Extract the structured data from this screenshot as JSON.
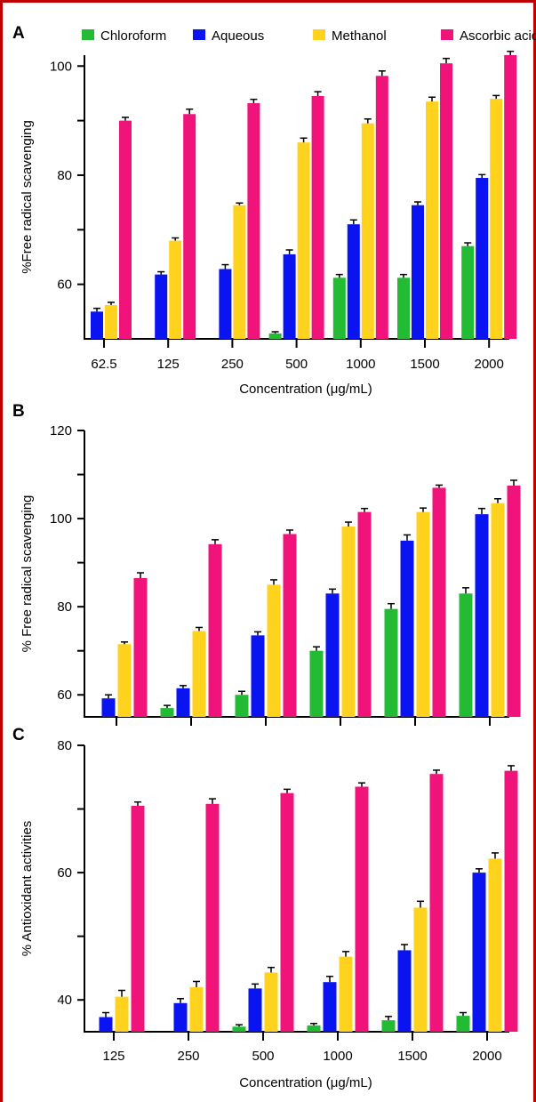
{
  "colors": {
    "chloroform": "#22bb33",
    "aqueous": "#0a14f0",
    "methanol": "#ffd21e",
    "ascorbic": "#f0147a",
    "frame": "#c00000"
  },
  "legend": [
    {
      "label": "Chloroform",
      "color": "#22bb33"
    },
    {
      "label": "Aqueous",
      "color": "#0a14f0"
    },
    {
      "label": "Methanol",
      "color": "#ffd21e"
    },
    {
      "label": "Ascorbic acid",
      "color": "#f0147a"
    }
  ],
  "chart_data": [
    {
      "panel": "A",
      "type": "bar",
      "xlabel": "Concentration (μg/mL)",
      "ylabel": "%Free radical scavenging",
      "ylim": [
        50,
        102
      ],
      "yticks": [
        60,
        80,
        100
      ],
      "categories": [
        "62.5",
        "125",
        "250",
        "500",
        "1000",
        "1500",
        "2000"
      ],
      "series": [
        {
          "name": "Chloroform",
          "values": [
            null,
            null,
            null,
            51.0,
            61.2,
            61.2,
            67.0
          ],
          "errors": [
            0,
            0,
            0,
            0.3,
            0.6,
            0.6,
            0.6
          ]
        },
        {
          "name": "Aqueous",
          "values": [
            55.0,
            61.8,
            62.8,
            65.5,
            71.0,
            74.5,
            79.5
          ],
          "errors": [
            0.6,
            0.5,
            0.8,
            0.8,
            0.8,
            0.6,
            0.6
          ]
        },
        {
          "name": "Methanol",
          "values": [
            56.2,
            68.0,
            74.5,
            86.0,
            89.5,
            93.5,
            94.0
          ],
          "errors": [
            0.5,
            0.5,
            0.4,
            0.8,
            0.8,
            0.8,
            0.6
          ]
        },
        {
          "name": "Ascorbic acid",
          "values": [
            90.0,
            91.2,
            93.2,
            94.5,
            98.2,
            100.5,
            102.0
          ],
          "errors": [
            0.6,
            0.9,
            0.7,
            0.8,
            0.9,
            0.9,
            0.7
          ]
        }
      ]
    },
    {
      "panel": "B",
      "type": "bar",
      "xlabel": "",
      "ylabel": "% Free radical scavenging",
      "ylim": [
        55,
        120
      ],
      "yticks": [
        60,
        80,
        100,
        120
      ],
      "categories": [
        "",
        "",
        "",
        "",
        "",
        ""
      ],
      "series": [
        {
          "name": "Chloroform",
          "values": [
            null,
            57.0,
            60.0,
            70.0,
            79.5,
            83.0
          ],
          "errors": [
            0,
            0.6,
            0.8,
            0.9,
            1.2,
            1.3
          ]
        },
        {
          "name": "Aqueous",
          "values": [
            59.2,
            61.5,
            73.5,
            83.0,
            95.0,
            101.0
          ],
          "errors": [
            0.8,
            0.6,
            0.8,
            1.0,
            1.3,
            1.3
          ]
        },
        {
          "name": "Methanol",
          "values": [
            71.5,
            74.5,
            85.0,
            98.2,
            101.5,
            103.5
          ],
          "errors": [
            0.5,
            0.8,
            1.1,
            1.0,
            0.9,
            1.0
          ]
        },
        {
          "name": "Ascorbic acid",
          "values": [
            86.5,
            94.2,
            96.5,
            101.5,
            107.0,
            107.5
          ],
          "errors": [
            1.2,
            1.0,
            0.9,
            0.8,
            0.6,
            1.2
          ]
        }
      ]
    },
    {
      "panel": "C",
      "type": "bar",
      "xlabel": "Concentration (μg/mL)",
      "ylabel": "% Antioxidant activities",
      "ylim": [
        35,
        80
      ],
      "yticks": [
        40,
        60,
        80
      ],
      "categories": [
        "125",
        "250",
        "500",
        "1000",
        "1500",
        "2000"
      ],
      "series": [
        {
          "name": "Chloroform",
          "values": [
            null,
            null,
            35.8,
            36.0,
            36.8,
            37.5
          ],
          "errors": [
            0,
            0,
            0.3,
            0.3,
            0.6,
            0.5
          ]
        },
        {
          "name": "Aqueous",
          "values": [
            37.3,
            39.5,
            41.8,
            42.8,
            47.8,
            60.0
          ],
          "errors": [
            0.7,
            0.7,
            0.7,
            0.9,
            0.9,
            0.6
          ]
        },
        {
          "name": "Methanol",
          "values": [
            40.5,
            42.0,
            44.3,
            46.8,
            54.5,
            62.2
          ],
          "errors": [
            1.0,
            0.9,
            0.8,
            0.8,
            1.0,
            0.9
          ]
        },
        {
          "name": "Ascorbic acid",
          "values": [
            70.5,
            70.8,
            72.5,
            73.5,
            75.5,
            76.0
          ],
          "errors": [
            0.6,
            0.8,
            0.6,
            0.6,
            0.6,
            0.8
          ]
        }
      ]
    }
  ]
}
